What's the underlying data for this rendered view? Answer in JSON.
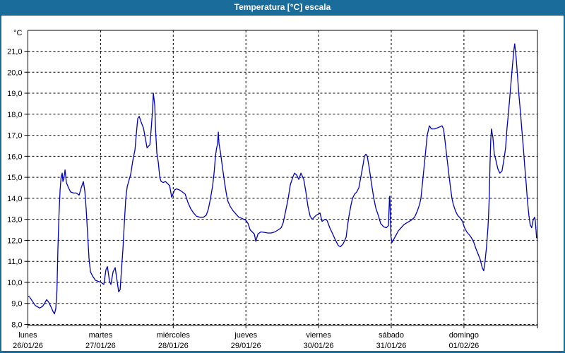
{
  "window": {
    "title": "Temperatura [°C] escala"
  },
  "colors": {
    "titlebar": "#1a6d9b",
    "titlebar_edge": "#0e4468",
    "line": "#0000bb",
    "grid": "#000000",
    "text": "#000000",
    "background": "#ffffff"
  },
  "chart_data": {
    "type": "line",
    "title": "Temperatura [°C] escala",
    "xlabel": "",
    "ylabel": "°C",
    "grid": "dashed",
    "legend_position": "none",
    "y_axis": {
      "unit_label": "°C",
      "tick_labels": [
        "21,0",
        "20,0",
        "19,0",
        "18,0",
        "17,0",
        "16,0",
        "15,0",
        "14,0",
        "13,0",
        "12,0",
        "11,0",
        "10,0",
        "9,0",
        "8,0"
      ],
      "tick_values": [
        21,
        20,
        19,
        18,
        17,
        16,
        15,
        14,
        13,
        12,
        11,
        10,
        9,
        8
      ],
      "ylim": [
        8.0,
        21.9
      ]
    },
    "x_axis": {
      "days": [
        {
          "name": "lunes",
          "date": "26/01/26"
        },
        {
          "name": "martes",
          "date": "27/01/26"
        },
        {
          "name": "miércoles",
          "date": "28/01/26"
        },
        {
          "name": "jueves",
          "date": "29/01/26"
        },
        {
          "name": "viernes",
          "date": "30/01/26"
        },
        {
          "name": "sábado",
          "date": "31/01/26"
        },
        {
          "name": "domingo",
          "date": "01/02/26"
        }
      ],
      "xlim_days": [
        0,
        7
      ]
    },
    "series": [
      {
        "name": "Temperatura",
        "color": "#0000bb",
        "points": [
          [
            0.0,
            9.35
          ],
          [
            0.024,
            9.3
          ],
          [
            0.063,
            9.1
          ],
          [
            0.102,
            8.9
          ],
          [
            0.16,
            8.78
          ],
          [
            0.199,
            8.85
          ],
          [
            0.229,
            9.0
          ],
          [
            0.258,
            9.18
          ],
          [
            0.287,
            9.05
          ],
          [
            0.316,
            8.85
          ],
          [
            0.345,
            8.62
          ],
          [
            0.365,
            8.5
          ],
          [
            0.384,
            8.75
          ],
          [
            0.399,
            9.6
          ],
          [
            0.413,
            11.6
          ],
          [
            0.428,
            13.2
          ],
          [
            0.443,
            14.4
          ],
          [
            0.457,
            15.0
          ],
          [
            0.472,
            15.2
          ],
          [
            0.482,
            14.8
          ],
          [
            0.496,
            14.95
          ],
          [
            0.511,
            15.35
          ],
          [
            0.53,
            14.75
          ],
          [
            0.559,
            14.5
          ],
          [
            0.588,
            14.3
          ],
          [
            0.627,
            14.25
          ],
          [
            0.666,
            14.25
          ],
          [
            0.705,
            14.15
          ],
          [
            0.734,
            14.5
          ],
          [
            0.763,
            14.8
          ],
          [
            0.783,
            14.35
          ],
          [
            0.802,
            13.5
          ],
          [
            0.822,
            12.3
          ],
          [
            0.841,
            11.15
          ],
          [
            0.861,
            10.5
          ],
          [
            0.89,
            10.3
          ],
          [
            0.929,
            10.1
          ],
          [
            0.968,
            10.05
          ],
          [
            1.007,
            10.0
          ],
          [
            1.045,
            9.9
          ],
          [
            1.074,
            10.6
          ],
          [
            1.094,
            10.75
          ],
          [
            1.123,
            10.05
          ],
          [
            1.142,
            9.9
          ],
          [
            1.172,
            10.5
          ],
          [
            1.201,
            10.7
          ],
          [
            1.23,
            10.0
          ],
          [
            1.249,
            9.55
          ],
          [
            1.269,
            9.65
          ],
          [
            1.288,
            10.6
          ],
          [
            1.308,
            11.6
          ],
          [
            1.327,
            12.8
          ],
          [
            1.347,
            14.0
          ],
          [
            1.366,
            14.55
          ],
          [
            1.395,
            14.9
          ],
          [
            1.415,
            15.15
          ],
          [
            1.444,
            15.8
          ],
          [
            1.473,
            16.3
          ],
          [
            1.493,
            17.1
          ],
          [
            1.512,
            17.8
          ],
          [
            1.532,
            17.9
          ],
          [
            1.561,
            17.6
          ],
          [
            1.59,
            17.35
          ],
          [
            1.619,
            16.8
          ],
          [
            1.639,
            16.4
          ],
          [
            1.678,
            16.55
          ],
          [
            1.697,
            17.3
          ],
          [
            1.717,
            18.3
          ],
          [
            1.726,
            19.0
          ],
          [
            1.746,
            18.4
          ],
          [
            1.756,
            17.3
          ],
          [
            1.775,
            16.15
          ],
          [
            1.795,
            15.7
          ],
          [
            1.814,
            15.0
          ],
          [
            1.833,
            14.8
          ],
          [
            1.863,
            14.75
          ],
          [
            1.892,
            14.8
          ],
          [
            1.921,
            14.7
          ],
          [
            1.95,
            14.6
          ],
          [
            1.979,
            14.05
          ],
          [
            2.018,
            14.4
          ],
          [
            2.047,
            14.45
          ],
          [
            2.086,
            14.4
          ],
          [
            2.125,
            14.3
          ],
          [
            2.164,
            14.2
          ],
          [
            2.202,
            13.8
          ],
          [
            2.241,
            13.5
          ],
          [
            2.28,
            13.3
          ],
          [
            2.319,
            13.15
          ],
          [
            2.368,
            13.1
          ],
          [
            2.416,
            13.1
          ],
          [
            2.455,
            13.2
          ],
          [
            2.484,
            13.5
          ],
          [
            2.513,
            14.0
          ],
          [
            2.542,
            14.6
          ],
          [
            2.562,
            15.2
          ],
          [
            2.581,
            16.0
          ],
          [
            2.595,
            16.35
          ],
          [
            2.61,
            16.6
          ],
          [
            2.62,
            17.15
          ],
          [
            2.63,
            16.6
          ],
          [
            2.649,
            16.2
          ],
          [
            2.669,
            15.7
          ],
          [
            2.688,
            15.2
          ],
          [
            2.708,
            14.7
          ],
          [
            2.727,
            14.3
          ],
          [
            2.747,
            13.9
          ],
          [
            2.786,
            13.6
          ],
          [
            2.824,
            13.4
          ],
          [
            2.863,
            13.25
          ],
          [
            2.902,
            13.1
          ],
          [
            2.941,
            13.05
          ],
          [
            2.97,
            13.0
          ],
          [
            3.0,
            12.95
          ],
          [
            3.029,
            12.8
          ],
          [
            3.058,
            12.5
          ],
          [
            3.087,
            12.4
          ],
          [
            3.116,
            12.3
          ],
          [
            3.136,
            11.95
          ],
          [
            3.165,
            12.3
          ],
          [
            3.204,
            12.4
          ],
          [
            3.252,
            12.38
          ],
          [
            3.3,
            12.35
          ],
          [
            3.349,
            12.35
          ],
          [
            3.397,
            12.4
          ],
          [
            3.446,
            12.5
          ],
          [
            3.485,
            12.6
          ],
          [
            3.514,
            12.85
          ],
          [
            3.553,
            13.5
          ],
          [
            3.582,
            14.0
          ],
          [
            3.611,
            14.65
          ],
          [
            3.65,
            15.05
          ],
          [
            3.67,
            15.2
          ],
          [
            3.699,
            15.1
          ],
          [
            3.728,
            14.9
          ],
          [
            3.757,
            15.2
          ],
          [
            3.796,
            14.9
          ],
          [
            3.825,
            14.3
          ],
          [
            3.854,
            13.6
          ],
          [
            3.883,
            13.15
          ],
          [
            3.912,
            13.0
          ],
          [
            3.941,
            13.1
          ],
          [
            3.97,
            13.2
          ],
          [
            3.999,
            13.25
          ],
          [
            4.019,
            13.3
          ],
          [
            4.048,
            12.9
          ],
          [
            4.087,
            13.0
          ],
          [
            4.116,
            12.95
          ],
          [
            4.155,
            12.6
          ],
          [
            4.194,
            12.3
          ],
          [
            4.233,
            12.0
          ],
          [
            4.272,
            11.75
          ],
          [
            4.301,
            11.7
          ],
          [
            4.34,
            11.85
          ],
          [
            4.379,
            12.15
          ],
          [
            4.398,
            12.7
          ],
          [
            4.418,
            13.15
          ],
          [
            4.447,
            13.7
          ],
          [
            4.466,
            14.0
          ],
          [
            4.496,
            14.2
          ],
          [
            4.525,
            14.3
          ],
          [
            4.554,
            14.5
          ],
          [
            4.583,
            15.05
          ],
          [
            4.612,
            15.6
          ],
          [
            4.631,
            16.0
          ],
          [
            4.651,
            16.1
          ],
          [
            4.67,
            16.0
          ],
          [
            4.699,
            15.4
          ],
          [
            4.728,
            14.7
          ],
          [
            4.757,
            14.05
          ],
          [
            4.786,
            13.55
          ],
          [
            4.825,
            13.15
          ],
          [
            4.854,
            12.8
          ],
          [
            4.893,
            12.65
          ],
          [
            4.932,
            12.6
          ],
          [
            4.961,
            12.7
          ],
          [
            4.976,
            14.05
          ],
          [
            4.981,
            14.1
          ],
          [
            4.995,
            12.2
          ],
          [
            5.01,
            11.9
          ],
          [
            5.058,
            12.2
          ],
          [
            5.097,
            12.45
          ],
          [
            5.136,
            12.6
          ],
          [
            5.175,
            12.75
          ],
          [
            5.223,
            12.85
          ],
          [
            5.272,
            12.95
          ],
          [
            5.321,
            13.1
          ],
          [
            5.36,
            13.4
          ],
          [
            5.389,
            13.7
          ],
          [
            5.408,
            14.0
          ],
          [
            5.437,
            15.0
          ],
          [
            5.466,
            16.0
          ],
          [
            5.495,
            17.0
          ],
          [
            5.524,
            17.45
          ],
          [
            5.553,
            17.3
          ],
          [
            5.592,
            17.3
          ],
          [
            5.631,
            17.35
          ],
          [
            5.67,
            17.4
          ],
          [
            5.699,
            17.45
          ],
          [
            5.719,
            17.3
          ],
          [
            5.738,
            16.8
          ],
          [
            5.757,
            16.2
          ],
          [
            5.777,
            15.6
          ],
          [
            5.796,
            15.05
          ],
          [
            5.815,
            14.5
          ],
          [
            5.835,
            14.0
          ],
          [
            5.854,
            13.7
          ],
          [
            5.883,
            13.4
          ],
          [
            5.912,
            13.2
          ],
          [
            5.951,
            13.05
          ],
          [
            5.98,
            12.9
          ],
          [
            6.009,
            12.6
          ],
          [
            6.039,
            12.4
          ],
          [
            6.077,
            12.25
          ],
          [
            6.107,
            12.1
          ],
          [
            6.136,
            11.9
          ],
          [
            6.165,
            11.6
          ],
          [
            6.194,
            11.35
          ],
          [
            6.223,
            11.1
          ],
          [
            6.252,
            10.7
          ],
          [
            6.272,
            10.55
          ],
          [
            6.291,
            11.0
          ],
          [
            6.311,
            11.7
          ],
          [
            6.33,
            12.6
          ],
          [
            6.34,
            13.3
          ],
          [
            6.35,
            14.2
          ],
          [
            6.359,
            15.6
          ],
          [
            6.369,
            16.8
          ],
          [
            6.379,
            17.3
          ],
          [
            6.388,
            17.1
          ],
          [
            6.398,
            16.9
          ],
          [
            6.418,
            16.1
          ],
          [
            6.437,
            15.85
          ],
          [
            6.466,
            15.4
          ],
          [
            6.495,
            15.2
          ],
          [
            6.524,
            15.3
          ],
          [
            6.553,
            15.9
          ],
          [
            6.573,
            16.4
          ],
          [
            6.592,
            17.3
          ],
          [
            6.612,
            18.05
          ],
          [
            6.631,
            18.8
          ],
          [
            6.65,
            19.6
          ],
          [
            6.67,
            20.4
          ],
          [
            6.689,
            21.1
          ],
          [
            6.699,
            21.35
          ],
          [
            6.718,
            20.7
          ],
          [
            6.738,
            19.8
          ],
          [
            6.757,
            18.9
          ],
          [
            6.777,
            18.1
          ],
          [
            6.796,
            17.3
          ],
          [
            6.815,
            16.5
          ],
          [
            6.835,
            15.6
          ],
          [
            6.854,
            14.8
          ],
          [
            6.874,
            13.9
          ],
          [
            6.893,
            13.2
          ],
          [
            6.912,
            12.75
          ],
          [
            6.932,
            12.6
          ],
          [
            6.951,
            12.95
          ],
          [
            6.971,
            13.1
          ],
          [
            6.98,
            13.0
          ],
          [
            6.99,
            12.55
          ],
          [
            7.0,
            12.1
          ]
        ]
      }
    ]
  }
}
